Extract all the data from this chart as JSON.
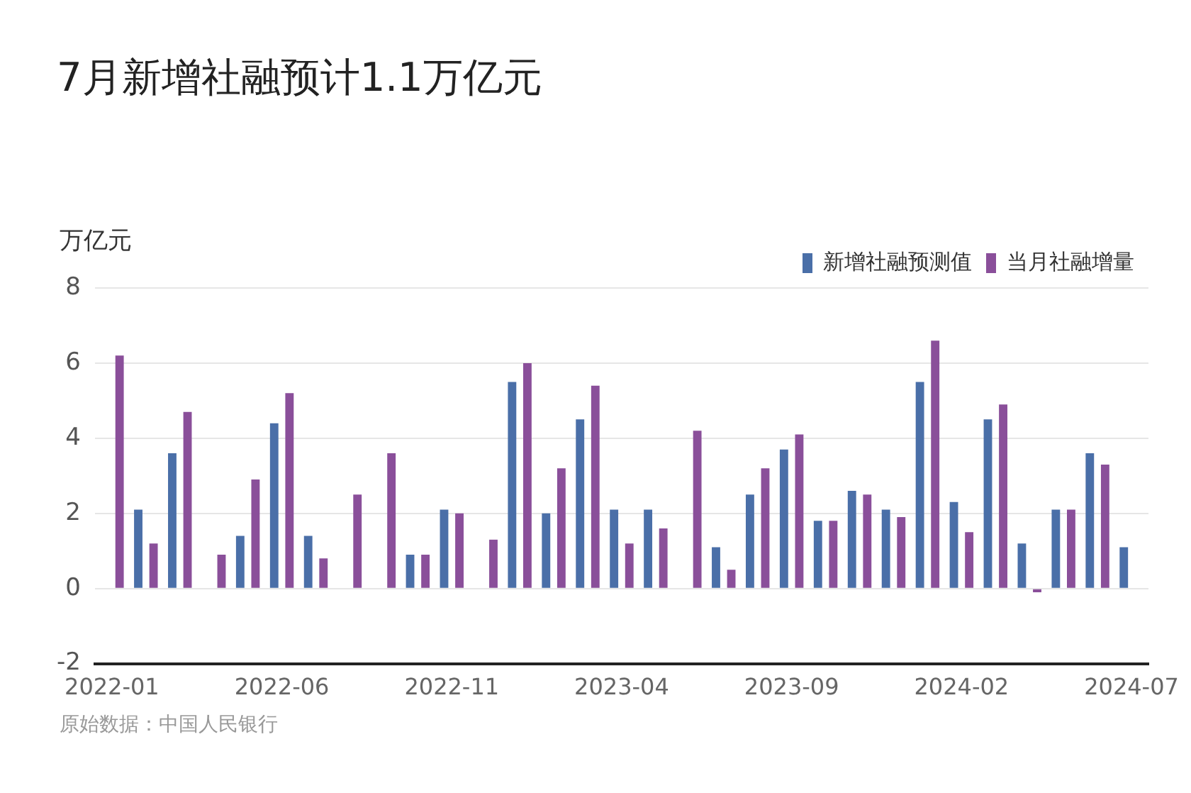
{
  "chart_data": {
    "type": "bar",
    "title": "7月新增社融预计1.1万亿元",
    "ylabel": "万亿元",
    "categories": [
      "2022-01",
      null,
      null,
      null,
      null,
      "2022-06",
      null,
      null,
      null,
      null,
      "2022-11",
      null,
      null,
      null,
      null,
      "2023-04",
      null,
      null,
      null,
      null,
      "2023-09",
      null,
      null,
      null,
      null,
      "2024-02",
      null,
      null,
      null,
      null,
      "2024-07"
    ],
    "series": [
      {
        "name": "新增社融预测值",
        "color": "#4a6fa8",
        "values": [
          null,
          2.1,
          3.6,
          null,
          1.4,
          4.4,
          1.4,
          null,
          null,
          0.9,
          2.1,
          null,
          5.5,
          2.0,
          4.5,
          2.1,
          2.1,
          null,
          1.1,
          2.5,
          3.7,
          1.8,
          2.6,
          2.1,
          5.5,
          2.3,
          4.5,
          1.2,
          2.1,
          3.6,
          1.1
        ]
      },
      {
        "name": "当月社融增量",
        "color": "#8a4f9a",
        "values": [
          6.2,
          1.2,
          4.7,
          0.9,
          2.9,
          5.2,
          0.8,
          2.5,
          3.6,
          0.9,
          2.0,
          1.3,
          6.0,
          3.2,
          5.4,
          1.2,
          1.6,
          4.2,
          0.5,
          3.2,
          4.1,
          1.8,
          2.5,
          1.9,
          6.6,
          1.5,
          4.9,
          -0.1,
          2.1,
          3.3,
          null
        ]
      }
    ],
    "ylim": [
      -2,
      8
    ],
    "yticks": [
      -2,
      0,
      2,
      4,
      6,
      8
    ],
    "grid": "y",
    "legend": "top right",
    "annotations": [
      "原始数据：中国人民银行"
    ]
  }
}
